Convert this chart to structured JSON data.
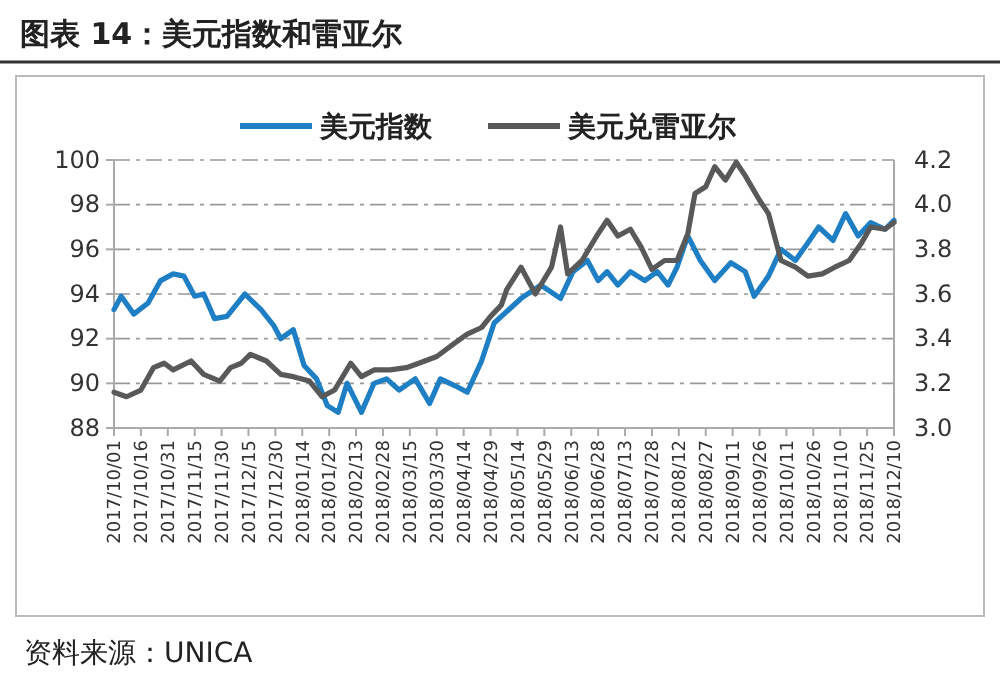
{
  "chart_data": {
    "type": "line",
    "title": "图表 14：美元指数和雷亚尔",
    "annotations": [
      "资料来源：UNICA"
    ],
    "xlim": [
      "2017-10-01",
      "2018-12-10"
    ],
    "xticks": [
      {
        "value": "2017-10-01",
        "label": "2017/10/01"
      },
      {
        "value": "2017-10-16",
        "label": "2017/10/16"
      },
      {
        "value": "2017-10-31",
        "label": "2017/10/31"
      },
      {
        "value": "2017-11-15",
        "label": "2017/11/15"
      },
      {
        "value": "2017-11-30",
        "label": "2017/11/30"
      },
      {
        "value": "2017-12-15",
        "label": "2017/12/15"
      },
      {
        "value": "2017-12-30",
        "label": "2017/12/30"
      },
      {
        "value": "2018-01-14",
        "label": "2018/01/14"
      },
      {
        "value": "2018-01-29",
        "label": "2018/01/29"
      },
      {
        "value": "2018-02-13",
        "label": "2018/02/13"
      },
      {
        "value": "2018-02-28",
        "label": "2018/02/28"
      },
      {
        "value": "2018-03-15",
        "label": "2018/03/15"
      },
      {
        "value": "2018-03-30",
        "label": "2018/03/30"
      },
      {
        "value": "2018-04-14",
        "label": "2018/04/14"
      },
      {
        "value": "2018-04-29",
        "label": "2018/04/29"
      },
      {
        "value": "2018-05-14",
        "label": "2018/05/14"
      },
      {
        "value": "2018-05-29",
        "label": "2018/05/29"
      },
      {
        "value": "2018-06-13",
        "label": "2018/06/13"
      },
      {
        "value": "2018-06-28",
        "label": "2018/06/28"
      },
      {
        "value": "2018-07-13",
        "label": "2018/07/13"
      },
      {
        "value": "2018-07-28",
        "label": "2018/07/28"
      },
      {
        "value": "2018-08-12",
        "label": "2018/08/12"
      },
      {
        "value": "2018-08-27",
        "label": "2018/08/27"
      },
      {
        "value": "2018-09-11",
        "label": "2018/09/11"
      },
      {
        "value": "2018-09-26",
        "label": "2018/09/26"
      },
      {
        "value": "2018-10-11",
        "label": "2018/10/11"
      },
      {
        "value": "2018-10-26",
        "label": "2018/10/26"
      },
      {
        "value": "2018-11-10",
        "label": "2018/11/10"
      },
      {
        "value": "2018-11-25",
        "label": "2018/11/25"
      },
      {
        "value": "2018-12-10",
        "label": "2018/12/10"
      }
    ],
    "ylim": [
      88,
      100
    ],
    "yticks": [
      88,
      90,
      92,
      94,
      96,
      98,
      100
    ],
    "y2lim": [
      3.0,
      4.2
    ],
    "y2ticks": [
      {
        "value": 3.0,
        "label": "3.0"
      },
      3.2,
      3.4,
      3.6,
      3.8,
      {
        "value": 4.0,
        "label": "4.0"
      },
      4.2
    ],
    "grid": "y",
    "legend": "top",
    "line_style": "solid",
    "series": [
      {
        "name": "美元指数",
        "color": "#1f7fc4",
        "x": [
          "2017-10-01",
          "2017-10-05",
          "2017-10-12",
          "2017-10-20",
          "2017-10-27",
          "2017-11-03",
          "2017-11-09",
          "2017-11-15",
          "2017-11-20",
          "2017-11-26",
          "2017-12-03",
          "2017-12-13",
          "2017-12-22",
          "2017-12-29",
          "2018-01-02",
          "2018-01-09",
          "2018-01-15",
          "2018-01-22",
          "2018-01-28",
          "2018-02-03",
          "2018-02-08",
          "2018-02-16",
          "2018-02-23",
          "2018-03-02",
          "2018-03-09",
          "2018-03-18",
          "2018-03-26",
          "2018-04-01",
          "2018-04-09",
          "2018-04-16",
          "2018-04-24",
          "2018-05-01",
          "2018-05-16",
          "2018-05-27",
          "2018-06-07",
          "2018-06-14",
          "2018-06-22",
          "2018-06-28",
          "2018-07-03",
          "2018-07-09",
          "2018-07-16",
          "2018-07-24",
          "2018-07-31",
          "2018-08-06",
          "2018-08-11",
          "2018-08-17",
          "2018-08-24",
          "2018-09-01",
          "2018-09-10",
          "2018-09-18",
          "2018-09-23",
          "2018-10-01",
          "2018-10-08",
          "2018-10-16",
          "2018-10-23",
          "2018-10-29",
          "2018-11-06",
          "2018-11-13",
          "2018-11-20",
          "2018-11-27",
          "2018-12-05",
          "2018-12-10"
        ],
        "values": [
          93.3,
          93.9,
          93.1,
          93.6,
          94.6,
          94.9,
          94.8,
          93.9,
          94.0,
          92.9,
          93.0,
          94.0,
          93.3,
          92.6,
          92.0,
          92.4,
          90.8,
          90.2,
          89.0,
          88.7,
          90.0,
          88.7,
          90.0,
          90.2,
          89.7,
          90.2,
          89.1,
          90.2,
          89.9,
          89.6,
          91.0,
          92.7,
          93.8,
          94.4,
          93.8,
          95.0,
          95.5,
          94.6,
          95.0,
          94.4,
          95.0,
          94.6,
          95.0,
          94.4,
          95.2,
          96.6,
          95.5,
          94.6,
          95.4,
          95.0,
          93.9,
          94.8,
          96.0,
          95.5,
          96.3,
          97.0,
          96.4,
          97.6,
          96.6,
          97.2,
          96.9,
          97.3
        ]
      },
      {
        "name": "美元兑雷亚尔",
        "color": "#595959",
        "axis": "y2",
        "x": [
          "2017-10-01",
          "2017-10-08",
          "2017-10-16",
          "2017-10-23",
          "2017-10-29",
          "2017-11-03",
          "2017-11-13",
          "2017-11-20",
          "2017-11-29",
          "2017-12-05",
          "2017-12-11",
          "2017-12-16",
          "2017-12-25",
          "2018-01-02",
          "2018-01-09",
          "2018-01-18",
          "2018-01-25",
          "2018-02-01",
          "2018-02-10",
          "2018-02-16",
          "2018-02-23",
          "2018-03-04",
          "2018-03-13",
          "2018-03-20",
          "2018-03-30",
          "2018-04-09",
          "2018-04-16",
          "2018-04-24",
          "2018-04-29",
          "2018-05-05",
          "2018-05-08",
          "2018-05-16",
          "2018-05-24",
          "2018-06-02",
          "2018-06-07",
          "2018-06-11",
          "2018-06-19",
          "2018-06-28",
          "2018-07-03",
          "2018-07-09",
          "2018-07-16",
          "2018-07-22",
          "2018-07-28",
          "2018-08-04",
          "2018-08-11",
          "2018-08-17",
          "2018-08-21",
          "2018-08-27",
          "2018-09-01",
          "2018-09-07",
          "2018-09-13",
          "2018-09-18",
          "2018-09-26",
          "2018-10-01",
          "2018-10-08",
          "2018-10-16",
          "2018-10-23",
          "2018-10-31",
          "2018-11-07",
          "2018-11-15",
          "2018-11-22",
          "2018-11-27",
          "2018-12-05",
          "2018-12-10"
        ],
        "values": [
          3.16,
          3.14,
          3.17,
          3.27,
          3.29,
          3.26,
          3.3,
          3.24,
          3.21,
          3.27,
          3.29,
          3.33,
          3.3,
          3.24,
          3.23,
          3.21,
          3.14,
          3.17,
          3.29,
          3.23,
          3.26,
          3.26,
          3.27,
          3.29,
          3.32,
          3.38,
          3.42,
          3.45,
          3.5,
          3.55,
          3.62,
          3.72,
          3.6,
          3.72,
          3.9,
          3.69,
          3.75,
          3.87,
          3.93,
          3.86,
          3.89,
          3.81,
          3.71,
          3.75,
          3.75,
          3.87,
          4.05,
          4.08,
          4.17,
          4.11,
          4.19,
          4.13,
          4.02,
          3.96,
          3.75,
          3.72,
          3.68,
          3.69,
          3.72,
          3.75,
          3.83,
          3.9,
          3.89,
          3.92
        ]
      }
    ]
  }
}
